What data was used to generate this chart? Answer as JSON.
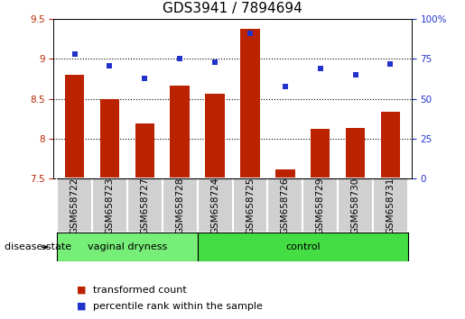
{
  "title": "GDS3941 / 7894694",
  "samples": [
    "GSM658722",
    "GSM658723",
    "GSM658727",
    "GSM658728",
    "GSM658724",
    "GSM658725",
    "GSM658726",
    "GSM658729",
    "GSM658730",
    "GSM658731"
  ],
  "red_values": [
    8.8,
    8.5,
    8.19,
    8.67,
    8.56,
    9.38,
    7.62,
    8.12,
    8.13,
    8.34
  ],
  "blue_values": [
    78,
    71,
    63,
    75,
    73,
    91,
    58,
    69,
    65,
    72
  ],
  "group1_count": 4,
  "group1_label": "vaginal dryness",
  "group2_label": "control",
  "group_header": "disease state",
  "ylim_left": [
    7.5,
    9.5
  ],
  "ylim_right": [
    0,
    100
  ],
  "yticks_left": [
    7.5,
    8.0,
    8.5,
    9.0,
    9.5
  ],
  "ytick_labels_left": [
    "7.5",
    "8",
    "8.5",
    "9",
    "9.5"
  ],
  "yticks_right": [
    0,
    25,
    50,
    75,
    100
  ],
  "ytick_labels_right": [
    "0",
    "25",
    "50",
    "75",
    "100%"
  ],
  "bar_color": "#bb2200",
  "dot_color": "#2233cc",
  "cell_color": "#d0d0d0",
  "cell_edge_color": "#ffffff",
  "group1_color": "#77ee77",
  "group2_color": "#44dd44",
  "legend_bar_label": "transformed count",
  "legend_dot_label": "percentile rank within the sample",
  "title_fontsize": 11,
  "tick_fontsize": 7.5,
  "label_fontsize": 8,
  "legend_fontsize": 8
}
